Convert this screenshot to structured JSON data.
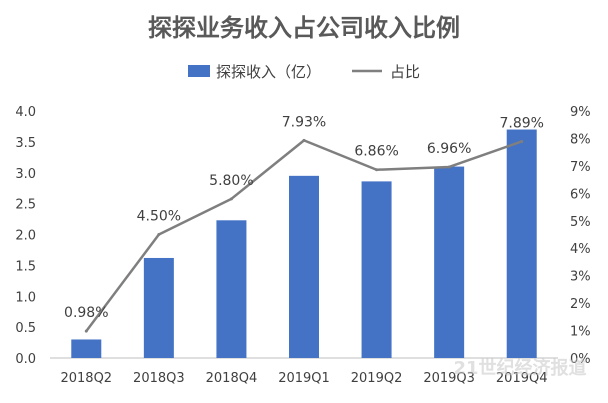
{
  "chart_data": {
    "type": "bar",
    "title": "探探业务收入占公司收入比例",
    "categories": [
      "2018Q2",
      "2018Q3",
      "2018Q4",
      "2019Q1",
      "2019Q2",
      "2019Q3",
      "2019Q4"
    ],
    "series": [
      {
        "name": "探探收入（亿）",
        "type": "bar",
        "axis": "left",
        "color": "#4472c4",
        "values": [
          0.3,
          1.62,
          2.23,
          2.95,
          2.86,
          3.1,
          3.7
        ]
      },
      {
        "name": "占比",
        "type": "line",
        "axis": "right",
        "color": "#7f7f7f",
        "values": [
          0.98,
          4.5,
          5.8,
          7.93,
          6.86,
          6.96,
          7.89
        ],
        "labels": [
          "0.98%",
          "4.50%",
          "5.80%",
          "7.93%",
          "6.86%",
          "6.96%",
          "7.89%"
        ]
      }
    ],
    "y_left": {
      "min": 0,
      "max": 4.0,
      "ticks": [
        "0.0",
        "0.5",
        "1.0",
        "1.5",
        "2.0",
        "2.5",
        "3.0",
        "3.5",
        "4.0"
      ]
    },
    "y_right": {
      "min": 0,
      "max": 9,
      "ticks": [
        "0%",
        "1%",
        "2%",
        "3%",
        "4%",
        "5%",
        "6%",
        "7%",
        "8%",
        "9%"
      ]
    },
    "grid": false,
    "legend_position": "top-center",
    "watermark": "21世纪经济报道"
  }
}
